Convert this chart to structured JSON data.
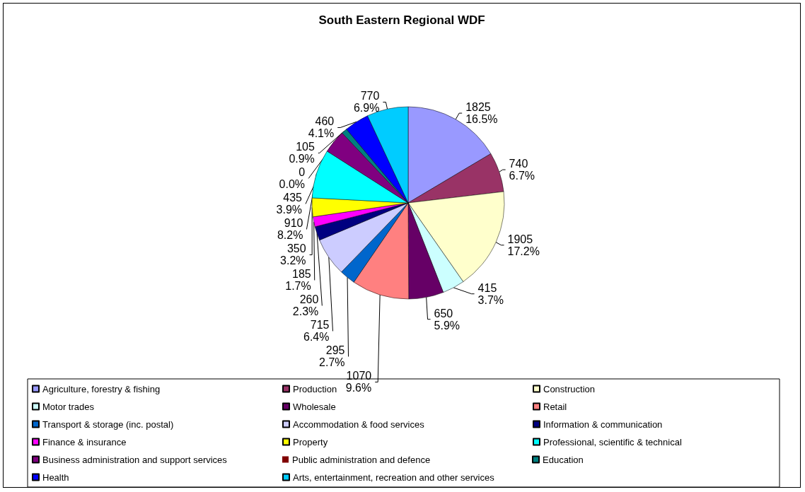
{
  "chart_data": {
    "type": "pie",
    "title": "South Eastern Regional WDF",
    "categories": [
      "Agriculture, forestry & fishing",
      "Production",
      "Construction",
      "Motor trades",
      "Wholesale",
      "Retail",
      "Transport & storage (inc. postal)",
      "Accommodation & food services",
      "Information & communication",
      "Finance & insurance",
      "Property",
      "Professional, scientific & technical",
      "Business administration and support services",
      "Public administration and defence",
      "Education",
      "Health",
      "Arts, entertainment, recreation and other services"
    ],
    "values": [
      1825,
      740,
      1905,
      415,
      650,
      1070,
      295,
      715,
      260,
      185,
      350,
      910,
      435,
      0,
      105,
      460,
      770
    ],
    "value_labels": [
      "1825\n16.5%",
      "740\n6.7%",
      "1905\n17.2%",
      "415\n3.7%",
      "650\n5.9%",
      "1070\n9.6%",
      "295\n2.7%",
      "715\n6.4%",
      "260\n2.3%",
      "185\n1.7%",
      "350\n3.2%",
      "910\n8.2%",
      "435\n3.9%",
      "0\n0.0%",
      "105\n0.9%",
      "460\n4.1%",
      "770\n6.9%"
    ],
    "colors": [
      "#9999ff",
      "#993366",
      "#ffffcc",
      "#ccffff",
      "#660066",
      "#ff8080",
      "#0066cc",
      "#ccccff",
      "#000080",
      "#ff00ff",
      "#ffff00",
      "#00ffff",
      "#800080",
      "#800000",
      "#008080",
      "#0000ff",
      "#00ccff"
    ],
    "legend": "bottom"
  }
}
